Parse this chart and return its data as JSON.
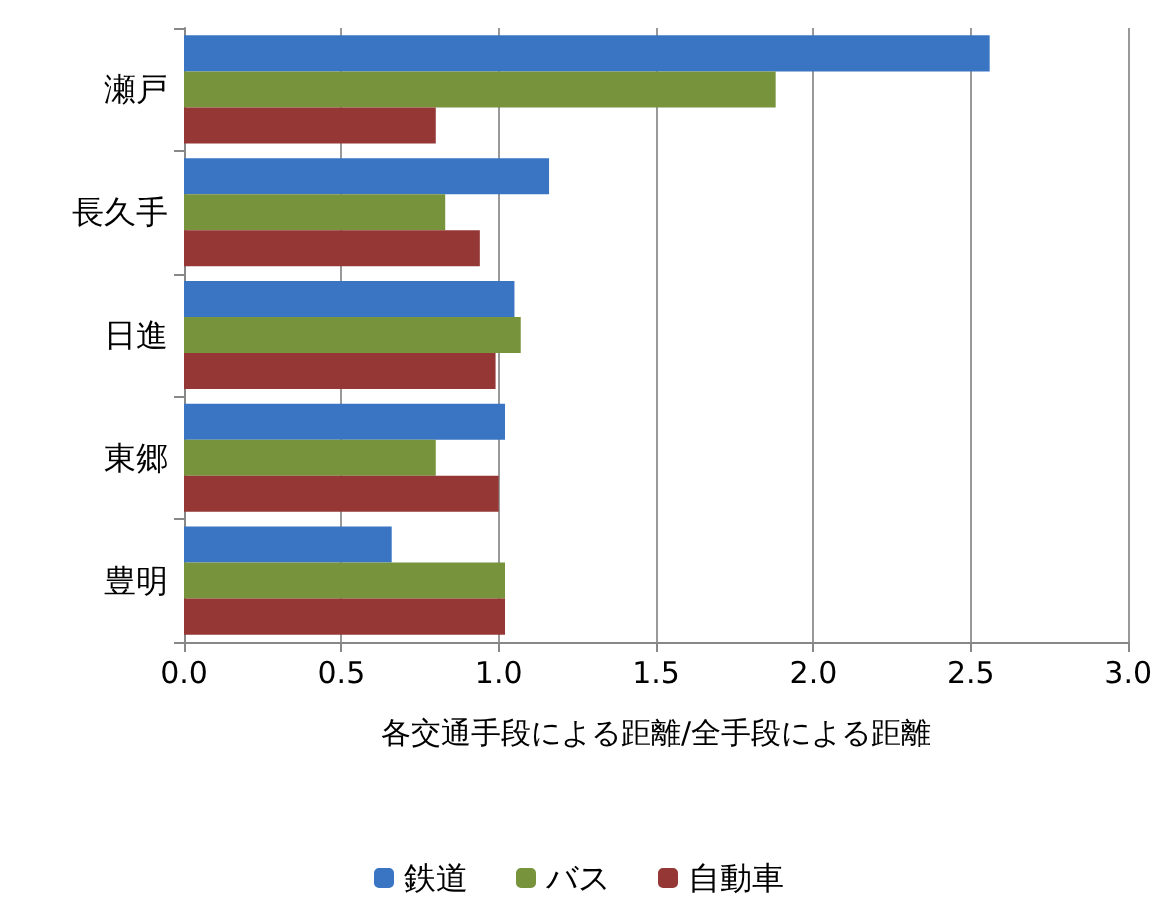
{
  "chart_data": {
    "type": "bar",
    "orientation": "horizontal",
    "xlabel": "各交通手段による距離/全手段による距離",
    "categories": [
      "瀬戸",
      "長久手",
      "日進",
      "東郷",
      "豊明"
    ],
    "series": [
      {
        "name": "鉄道",
        "color": "#3a75c4",
        "values": [
          2.56,
          1.16,
          1.05,
          1.02,
          0.66
        ]
      },
      {
        "name": "バス",
        "color": "#77933c",
        "values": [
          1.88,
          0.83,
          1.07,
          0.8,
          1.02
        ]
      },
      {
        "name": "自動車",
        "color": "#953735",
        "values": [
          0.8,
          0.94,
          0.99,
          1.0,
          1.02
        ]
      }
    ],
    "xlim": [
      0,
      3
    ],
    "xticks": [
      {
        "value": 0,
        "label": "0.0"
      },
      0.5,
      {
        "value": 1,
        "label": "1.0"
      },
      1.5,
      {
        "value": 2,
        "label": "2.0"
      },
      2.5,
      {
        "value": 3,
        "label": "3.0"
      }
    ],
    "grid": "x",
    "legend": "bottom"
  }
}
